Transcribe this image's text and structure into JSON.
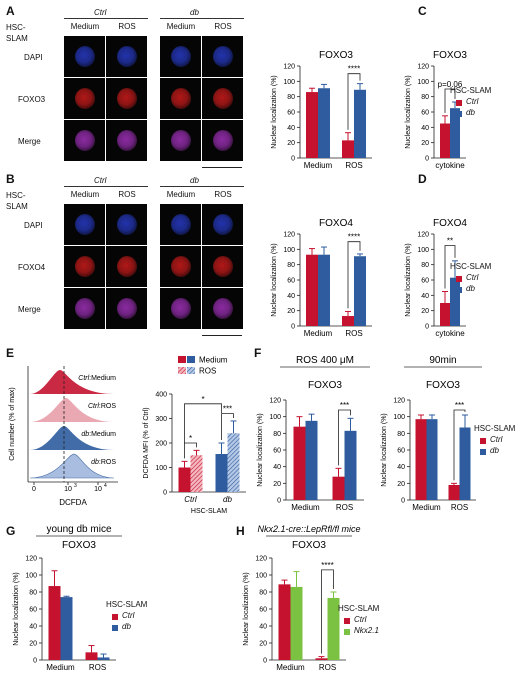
{
  "panels": {
    "A": "A",
    "B": "B",
    "C": "C",
    "D": "D",
    "E": "E",
    "F": "F",
    "G": "G",
    "H": "H"
  },
  "micro": {
    "row_header": "HSC-\nSLAM",
    "groups": [
      "Ctrl",
      "db"
    ],
    "cols": [
      "Medium",
      "ROS",
      "Medium",
      "ROS"
    ],
    "A_rows": [
      "DAPI",
      "FOXO3",
      "Merge"
    ],
    "B_rows": [
      "DAPI",
      "FOXO4",
      "Merge"
    ]
  },
  "legend_hsc": {
    "title": "HSC-SLAM",
    "ctrl": "Ctrl",
    "db": "db",
    "nkx": "Nkx2.1"
  },
  "colors": {
    "ctrl": "#c4122f",
    "db": "#2e5c9e",
    "nkx": "#7cc242",
    "dapi": "#2233aa",
    "foxo": "#b01818",
    "merge": "#8a2aa0"
  },
  "chart_data": [
    {
      "id": "A",
      "type": "bar",
      "title": "FOXO3",
      "ylabel": "Nuclear localization (%)",
      "ylim": [
        0,
        120
      ],
      "yticks": [
        0,
        20,
        40,
        60,
        80,
        100,
        120
      ],
      "categories": [
        "Medium",
        "ROS"
      ],
      "series": [
        {
          "name": "Ctrl",
          "values": [
            86,
            23
          ],
          "err": [
            5,
            10
          ]
        },
        {
          "name": "db",
          "values": [
            91,
            89
          ],
          "err": [
            5,
            8
          ]
        }
      ],
      "annotation": "****"
    },
    {
      "id": "B",
      "type": "bar",
      "title": "FOXO4",
      "ylabel": "Nuclear localization (%)",
      "ylim": [
        0,
        120
      ],
      "yticks": [
        0,
        20,
        40,
        60,
        80,
        100,
        120
      ],
      "categories": [
        "Medium",
        "ROS"
      ],
      "series": [
        {
          "name": "Ctrl",
          "values": [
            93,
            13
          ],
          "err": [
            8,
            6
          ]
        },
        {
          "name": "db",
          "values": [
            93,
            91
          ],
          "err": [
            10,
            3
          ]
        }
      ],
      "annotation": "****"
    },
    {
      "id": "C",
      "type": "bar",
      "title": "FOXO3",
      "ylabel": "Nuclear localization (%)",
      "ylim": [
        0,
        120
      ],
      "yticks": [
        0,
        20,
        40,
        60,
        80,
        100,
        120
      ],
      "categories": [
        "cytokine"
      ],
      "series": [
        {
          "name": "Ctrl",
          "values": [
            45
          ],
          "err": [
            10
          ]
        },
        {
          "name": "db",
          "values": [
            65
          ],
          "err": [
            8
          ]
        }
      ],
      "annotation": "p=0.06"
    },
    {
      "id": "D",
      "type": "bar",
      "title": "FOXO4",
      "ylabel": "Nuclear localization (%)",
      "ylim": [
        0,
        120
      ],
      "yticks": [
        0,
        20,
        40,
        60,
        80,
        100,
        120
      ],
      "categories": [
        "cytokine"
      ],
      "series": [
        {
          "name": "Ctrl",
          "values": [
            30
          ],
          "err": [
            15
          ]
        },
        {
          "name": "db",
          "values": [
            63
          ],
          "err": [
            22
          ]
        }
      ],
      "annotation": "**"
    },
    {
      "id": "E",
      "type": "bar",
      "ylabel": "DCFDA MFI (% of Ctrl)",
      "xlabel": "HSC-SLAM",
      "ylim": [
        0,
        400
      ],
      "yticks": [
        0,
        100,
        200,
        300,
        400
      ],
      "categories": [
        "Ctrl",
        "db"
      ],
      "series": [
        {
          "name": "Medium",
          "values": [
            100,
            155
          ],
          "err": [
            25,
            45
          ]
        },
        {
          "name": "ROS",
          "values": [
            150,
            240
          ],
          "err": [
            20,
            50
          ]
        }
      ],
      "annotations": [
        "*",
        "***",
        "*"
      ]
    },
    {
      "id": "F1",
      "type": "bar",
      "title": "FOXO3",
      "header": "ROS 400 μM",
      "ylabel": "Nuclear localization (%)",
      "ylim": [
        0,
        120
      ],
      "yticks": [
        0,
        20,
        40,
        60,
        80,
        100,
        120
      ],
      "categories": [
        "Medium",
        "ROS"
      ],
      "series": [
        {
          "name": "Ctrl",
          "values": [
            88,
            28
          ],
          "err": [
            12,
            10
          ]
        },
        {
          "name": "db",
          "values": [
            95,
            83
          ],
          "err": [
            8,
            15
          ]
        }
      ],
      "annotation": "***"
    },
    {
      "id": "F2",
      "type": "bar",
      "title": "FOXO3",
      "header": "90min",
      "ylabel": "Nuclear localization (%)",
      "ylim": [
        0,
        120
      ],
      "yticks": [
        0,
        20,
        40,
        60,
        80,
        100,
        120
      ],
      "categories": [
        "Medium",
        "ROS"
      ],
      "series": [
        {
          "name": "Ctrl",
          "values": [
            97,
            18
          ],
          "err": [
            5,
            2
          ]
        },
        {
          "name": "db",
          "values": [
            97,
            87
          ],
          "err": [
            5,
            15
          ]
        }
      ],
      "annotation": "***"
    },
    {
      "id": "G",
      "type": "bar",
      "title": "FOXO3",
      "header": "young db mice",
      "ylabel": "Nuclear localization (%)",
      "ylim": [
        0,
        120
      ],
      "yticks": [
        0,
        20,
        40,
        60,
        80,
        100,
        120
      ],
      "categories": [
        "Medium",
        "ROS"
      ],
      "series": [
        {
          "name": "Ctrl",
          "values": [
            87,
            9
          ],
          "err": [
            18,
            8
          ]
        },
        {
          "name": "db",
          "values": [
            74,
            3
          ],
          "err": [
            1,
            4
          ]
        }
      ]
    },
    {
      "id": "H",
      "type": "bar",
      "title": "FOXO3",
      "header": "Nkx2.1-cre::LepRfl/fl mice",
      "ylabel": "Nuclear localization (%)",
      "ylim": [
        0,
        120
      ],
      "yticks": [
        0,
        20,
        40,
        60,
        80,
        100,
        120
      ],
      "categories": [
        "Medium",
        "ROS"
      ],
      "series": [
        {
          "name": "Ctrl",
          "values": [
            89,
            2
          ],
          "err": [
            5,
            2
          ]
        },
        {
          "name": "Nkx2.1",
          "values": [
            86,
            73
          ],
          "err": [
            18,
            7
          ]
        }
      ],
      "annotation": "****"
    }
  ],
  "flow": {
    "title": "Cell number (% of max)",
    "xlabel": "DCFDA",
    "tick0": "0",
    "tick3": "10",
    "tick3sup": "3",
    "tick4": "10",
    "tick4sup": "4",
    "labels": [
      {
        "g": "Ctrl",
        "c": ":Medium"
      },
      {
        "g": "Ctrl",
        "c": ":ROS"
      },
      {
        "g": "db",
        "c": ":Medium"
      },
      {
        "g": "db",
        "c": ":ROS"
      }
    ]
  }
}
